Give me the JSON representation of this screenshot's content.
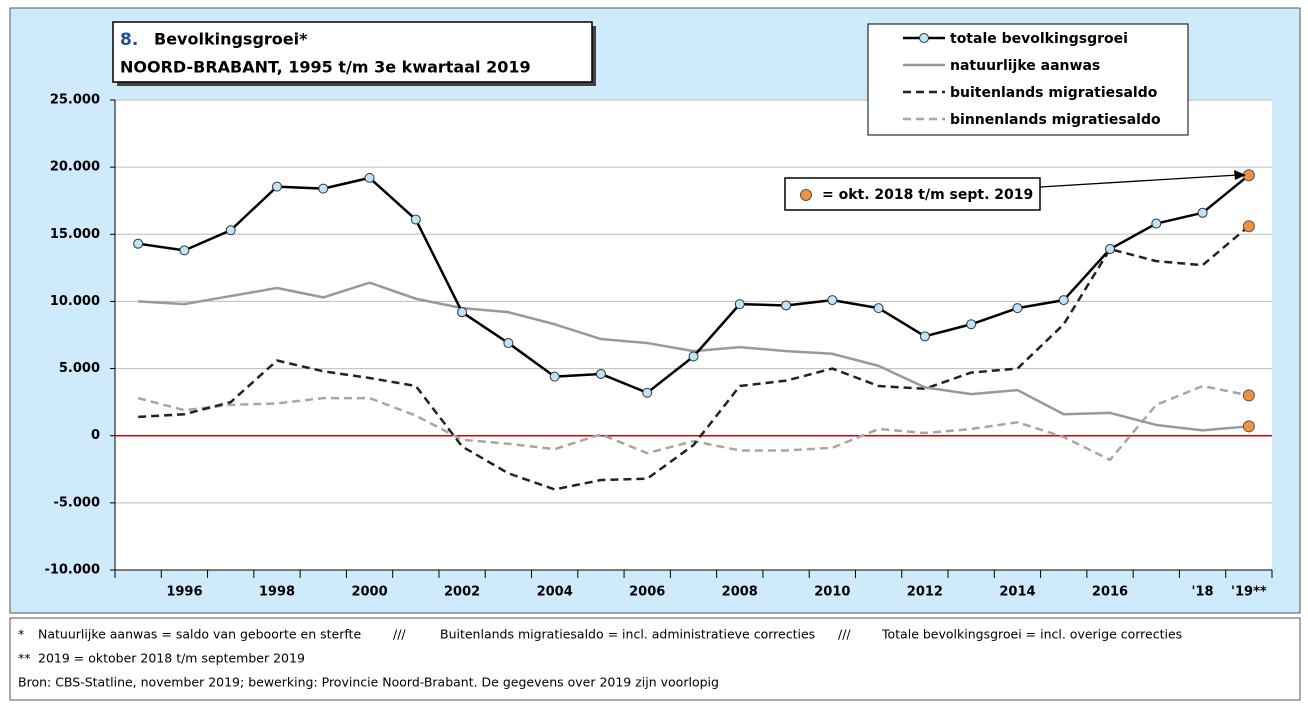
{
  "chart_data": {
    "type": "line",
    "title_number": "8.",
    "title": "Bevolkingsgroei*",
    "subtitle": "NOORD-BRABANT, 1995 t/m 3e kwartaal 2019",
    "categories": [
      null,
      "1996",
      null,
      "1998",
      null,
      "2000",
      null,
      "2002",
      null,
      "2004",
      null,
      "2006",
      null,
      "2008",
      null,
      "2010",
      null,
      "2012",
      null,
      "2014",
      null,
      "2016",
      null,
      "'18",
      "'19**"
    ],
    "series": [
      {
        "name": "totale bevolkingsgroei",
        "color": "#000000",
        "style": "solid",
        "width": 2.5,
        "marker": "#bfe3f7",
        "values": [
          14300,
          13800,
          15300,
          18550,
          18400,
          19200,
          16100,
          9200,
          6900,
          4400,
          4600,
          3200,
          5900,
          9800,
          9700,
          10100,
          9500,
          7400,
          8300,
          9500,
          10100,
          13900,
          15800,
          16600,
          19400
        ]
      },
      {
        "name": "natuurlijke aanwas",
        "color": "#999999",
        "style": "solid",
        "width": 2.5,
        "marker": null,
        "values": [
          10000,
          9800,
          10400,
          11000,
          10300,
          11400,
          10200,
          9500,
          9200,
          8300,
          7200,
          6900,
          6300,
          6600,
          6300,
          6100,
          5200,
          3600,
          3100,
          3400,
          1600,
          1700,
          800,
          400,
          700
        ]
      },
      {
        "name": "buitenlands migratiesaldo",
        "color": "#222222",
        "style": "dashed",
        "width": 2.5,
        "marker": null,
        "values": [
          1400,
          1600,
          2500,
          5600,
          4800,
          4300,
          3700,
          -800,
          -2800,
          -4000,
          -3300,
          -3200,
          -700,
          3700,
          4100,
          5000,
          3700,
          3500,
          4700,
          5000,
          8300,
          13900,
          13000,
          12700,
          15600
        ]
      },
      {
        "name": "binnenlands migratiesaldo",
        "color": "#a6a6a6",
        "style": "dashed",
        "width": 2.5,
        "marker": null,
        "values": [
          2800,
          1900,
          2300,
          2400,
          2800,
          2800,
          1500,
          -300,
          -600,
          -1000,
          100,
          -1300,
          -400,
          -1100,
          -1100,
          -900,
          500,
          200,
          500,
          1000,
          -100,
          -1800,
          2300,
          3700,
          3000
        ]
      }
    ],
    "last_point_color": "#f4913f",
    "annotation": "= okt. 2018 t/m sept. 2019",
    "zero_line_color": "#e00000",
    "ylim": [
      -10000,
      25000
    ],
    "yticks": [
      {
        "value": -10000,
        "label": "-10.000"
      },
      {
        "value": -5000,
        "label": "-5.000"
      },
      0,
      {
        "value": 5000,
        "label": "5.000"
      },
      {
        "value": 10000,
        "label": "10.000"
      },
      {
        "value": 15000,
        "label": "15.000"
      },
      {
        "value": 20000,
        "label": "20.000"
      },
      {
        "value": 25000,
        "label": "25.000"
      }
    ],
    "grid": true
  },
  "footnotes": [
    [
      "*",
      "Natuurlijke aanwas = saldo van geboorte en sterfte",
      "///",
      "Buitenlands migratiesaldo = incl. administratieve correcties",
      "///",
      "Totale bevolkingsgroei = incl. overige correcties"
    ],
    [
      "**",
      "2019 = oktober 2018 t/m september 2019"
    ],
    [
      "Bron: CBS-Statline, november 2019; bewerking: Provincie Noord-Brabant. De gegevens over 2019 zijn voorlopig"
    ]
  ]
}
